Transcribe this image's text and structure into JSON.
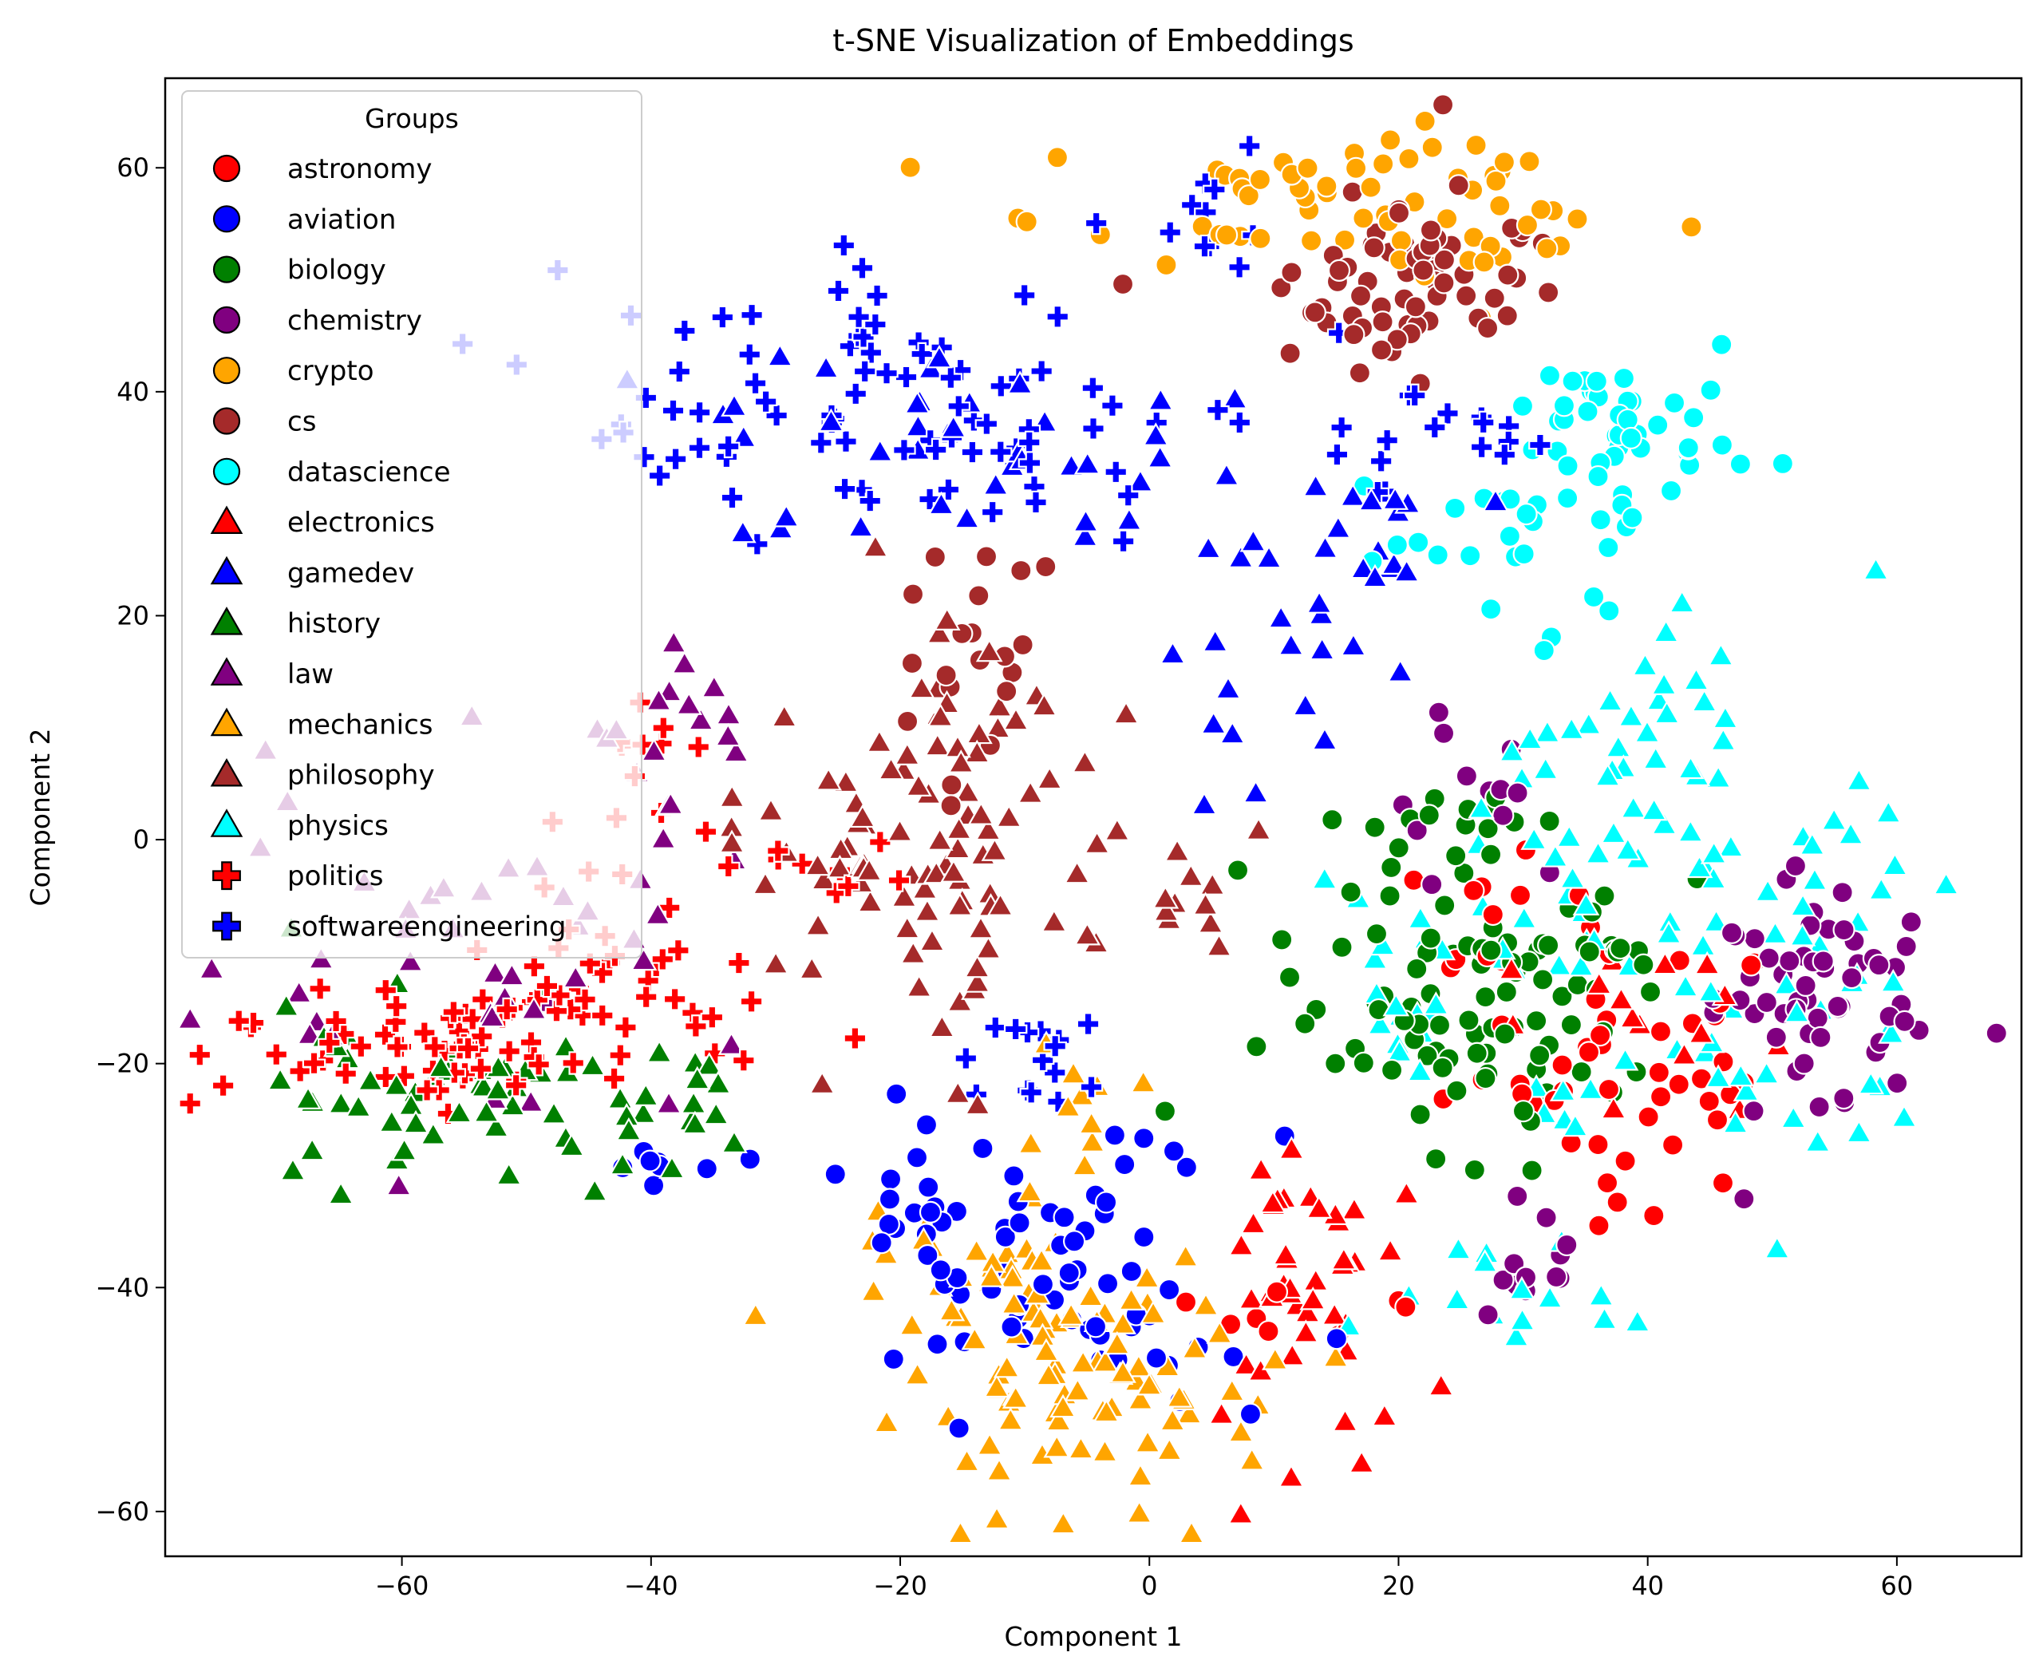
{
  "chart_data": {
    "type": "scatter",
    "title": "t-SNE Visualization of Embeddings",
    "xlabel": "Component 1",
    "ylabel": "Component 2",
    "xlim": [
      -79,
      70
    ],
    "ylim": [
      -64,
      68
    ],
    "xticks": [
      -60,
      -40,
      -20,
      0,
      20,
      40,
      60
    ],
    "yticks": [
      -60,
      -40,
      -20,
      0,
      20,
      40,
      60
    ],
    "xtick_labels": [
      "−60",
      "−40",
      "−20",
      "0",
      "20",
      "40",
      "60"
    ],
    "ytick_labels": [
      "−60",
      "−40",
      "−20",
      "0",
      "20",
      "40",
      "60"
    ],
    "grid": false,
    "legend": {
      "title": "Groups",
      "placement": "top-left"
    },
    "point_style": "markers with white edge, dense overlapping clusters",
    "series": [
      {
        "name": "astronomy",
        "marker": "circle",
        "color": "#ff0000",
        "clusters": [
          {
            "cx": 38,
            "cy": -20,
            "sx": 7,
            "sy": 6,
            "n": 45
          },
          {
            "cx": 27,
            "cy": -8,
            "sx": 4,
            "sy": 4,
            "n": 12
          },
          {
            "cx": 10,
            "cy": -42,
            "sx": 4,
            "sy": 4,
            "n": 8
          }
        ]
      },
      {
        "name": "aviation",
        "marker": "circle",
        "color": "#0000ff",
        "clusters": [
          {
            "cx": -8,
            "cy": -38,
            "sx": 8,
            "sy": 6,
            "n": 55
          },
          {
            "cx": -20,
            "cy": -31,
            "sx": 3,
            "sy": 3,
            "n": 12
          },
          {
            "cx": -40,
            "cy": -29,
            "sx": 3,
            "sy": 2,
            "n": 8
          },
          {
            "cx": 0,
            "cy": -45,
            "sx": 3,
            "sy": 3,
            "n": 10
          }
        ]
      },
      {
        "name": "biology",
        "marker": "circle",
        "color": "#008000",
        "clusters": [
          {
            "cx": 25,
            "cy": -15,
            "sx": 7,
            "sy": 6,
            "n": 75
          },
          {
            "cx": 33,
            "cy": -10,
            "sx": 5,
            "sy": 4,
            "n": 20
          },
          {
            "cx": 20,
            "cy": 0,
            "sx": 4,
            "sy": 4,
            "n": 15
          }
        ]
      },
      {
        "name": "chemistry",
        "marker": "circle",
        "color": "#800080",
        "clusters": [
          {
            "cx": 53,
            "cy": -15,
            "sx": 5,
            "sy": 6,
            "n": 60
          },
          {
            "cx": 30,
            "cy": -38,
            "sx": 3,
            "sy": 3,
            "n": 12
          },
          {
            "cx": 25,
            "cy": 5,
            "sx": 4,
            "sy": 3,
            "n": 12
          }
        ]
      },
      {
        "name": "crypto",
        "marker": "circle",
        "color": "#ffa500",
        "clusters": [
          {
            "cx": 15,
            "cy": 57,
            "sx": 12,
            "sy": 3,
            "n": 55
          },
          {
            "cx": 28,
            "cy": 55,
            "sx": 3,
            "sy": 4,
            "n": 12
          }
        ]
      },
      {
        "name": "cs",
        "marker": "circle",
        "color": "#a52a2a",
        "clusters": [
          {
            "cx": 22,
            "cy": 53,
            "sx": 6,
            "sy": 4,
            "n": 40
          },
          {
            "cx": 16,
            "cy": 47,
            "sx": 5,
            "sy": 3,
            "n": 30
          },
          {
            "cx": -15,
            "cy": 15,
            "sx": 4,
            "sy": 6,
            "n": 20
          }
        ]
      },
      {
        "name": "datascience",
        "marker": "circle",
        "color": "#00ffff",
        "clusters": [
          {
            "cx": 37,
            "cy": 35,
            "sx": 5,
            "sy": 5,
            "n": 55
          },
          {
            "cx": 25,
            "cy": 28,
            "sx": 5,
            "sy": 4,
            "n": 15
          }
        ]
      },
      {
        "name": "electronics",
        "marker": "triangle",
        "color": "#ff0000",
        "clusters": [
          {
            "cx": 13,
            "cy": -40,
            "sx": 5,
            "sy": 6,
            "n": 45
          },
          {
            "cx": 40,
            "cy": -15,
            "sx": 6,
            "sy": 5,
            "n": 15
          }
        ]
      },
      {
        "name": "gamedev",
        "marker": "triangle",
        "color": "#0000ff",
        "clusters": [
          {
            "cx": -15,
            "cy": 35,
            "sx": 12,
            "sy": 5,
            "n": 40
          },
          {
            "cx": 15,
            "cy": 25,
            "sx": 6,
            "sy": 5,
            "n": 25
          },
          {
            "cx": 8,
            "cy": 10,
            "sx": 4,
            "sy": 4,
            "n": 10
          }
        ]
      },
      {
        "name": "history",
        "marker": "triangle",
        "color": "#008000",
        "clusters": [
          {
            "cx": -55,
            "cy": -22,
            "sx": 9,
            "sy": 4,
            "n": 55
          },
          {
            "cx": -40,
            "cy": -25,
            "sx": 4,
            "sy": 4,
            "n": 15
          }
        ]
      },
      {
        "name": "law",
        "marker": "triangle",
        "color": "#800080",
        "clusters": [
          {
            "cx": -55,
            "cy": -10,
            "sx": 10,
            "sy": 8,
            "n": 45
          },
          {
            "cx": -38,
            "cy": 10,
            "sx": 4,
            "sy": 5,
            "n": 15
          }
        ]
      },
      {
        "name": "mechanics",
        "marker": "triangle",
        "color": "#ffa500",
        "clusters": [
          {
            "cx": -5,
            "cy": -48,
            "sx": 8,
            "sy": 6,
            "n": 95
          },
          {
            "cx": -15,
            "cy": -38,
            "sx": 5,
            "sy": 3,
            "n": 20
          },
          {
            "cx": -5,
            "cy": -25,
            "sx": 3,
            "sy": 3,
            "n": 10
          }
        ]
      },
      {
        "name": "philosophy",
        "marker": "triangle",
        "color": "#a52a2a",
        "clusters": [
          {
            "cx": -15,
            "cy": 2,
            "sx": 6,
            "sy": 10,
            "n": 85
          },
          {
            "cx": -25,
            "cy": -1,
            "sx": 4,
            "sy": 3,
            "n": 15
          },
          {
            "cx": 3,
            "cy": -5,
            "sx": 3,
            "sy": 3,
            "n": 12
          }
        ]
      },
      {
        "name": "physics",
        "marker": "triangle",
        "color": "#00ffff",
        "clusters": [
          {
            "cx": 45,
            "cy": -10,
            "sx": 10,
            "sy": 10,
            "n": 90
          },
          {
            "cx": 40,
            "cy": 10,
            "sx": 4,
            "sy": 5,
            "n": 25
          },
          {
            "cx": 20,
            "cy": -15,
            "sx": 4,
            "sy": 4,
            "n": 20
          },
          {
            "cx": 28,
            "cy": -40,
            "sx": 4,
            "sy": 3,
            "n": 15
          }
        ]
      },
      {
        "name": "politics",
        "marker": "plus",
        "color": "#ff0000",
        "clusters": [
          {
            "cx": -55,
            "cy": -18,
            "sx": 10,
            "sy": 4,
            "n": 80
          },
          {
            "cx": -42,
            "cy": -8,
            "sx": 4,
            "sy": 5,
            "n": 20
          },
          {
            "cx": -38,
            "cy": 10,
            "sx": 3,
            "sy": 4,
            "n": 10
          },
          {
            "cx": -26,
            "cy": -3,
            "sx": 3,
            "sy": 2,
            "n": 8
          }
        ]
      },
      {
        "name": "softwareengineering",
        "marker": "plus",
        "color": "#0000ff",
        "clusters": [
          {
            "cx": -18,
            "cy": 38,
            "sx": 14,
            "sy": 6,
            "n": 90
          },
          {
            "cx": -10,
            "cy": -20,
            "sx": 3,
            "sy": 3,
            "n": 15
          },
          {
            "cx": 25,
            "cy": 35,
            "sx": 6,
            "sy": 3,
            "n": 15
          },
          {
            "cx": 4,
            "cy": 55,
            "sx": 3,
            "sy": 4,
            "n": 10
          }
        ]
      }
    ]
  }
}
